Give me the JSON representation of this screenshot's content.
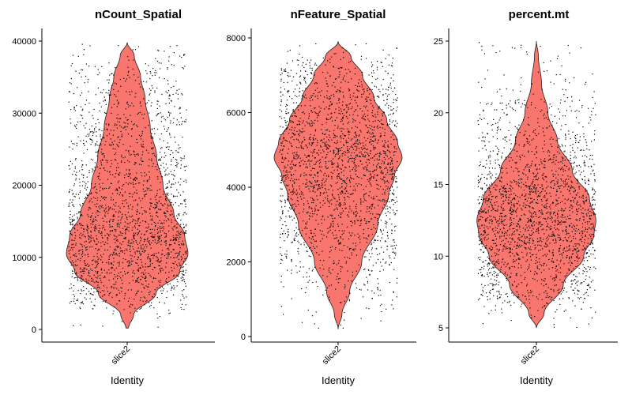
{
  "chart_data": [
    {
      "type": "violin",
      "title": "nCount_Spatial",
      "xlabel": "Identity",
      "ylabel": "",
      "categories": [
        "slice2"
      ],
      "ylim": [
        -1000,
        41000
      ],
      "yticks": [
        0,
        10000,
        20000,
        30000,
        40000
      ],
      "ytick_labels": [
        "0",
        "10000",
        "20000",
        "30000",
        "40000"
      ],
      "fill_color": "#F8766D",
      "data_range": [
        200,
        39800
      ],
      "density_profile": [
        [
          200,
          0.02
        ],
        [
          2000,
          0.1
        ],
        [
          5000,
          0.45
        ],
        [
          8000,
          0.82
        ],
        [
          10500,
          0.95
        ],
        [
          13000,
          0.9
        ],
        [
          16000,
          0.73
        ],
        [
          20000,
          0.56
        ],
        [
          24000,
          0.46
        ],
        [
          28000,
          0.36
        ],
        [
          32000,
          0.28
        ],
        [
          35000,
          0.21
        ],
        [
          38000,
          0.11
        ],
        [
          39800,
          0.0
        ]
      ],
      "point_count": 2200
    },
    {
      "type": "violin",
      "title": "nFeature_Spatial",
      "xlabel": "Identity",
      "ylabel": "",
      "categories": [
        "slice2"
      ],
      "ylim": [
        -200,
        8200
      ],
      "yticks": [
        0,
        2000,
        4000,
        6000,
        8000
      ],
      "ytick_labels": [
        "0",
        "2000",
        "4000",
        "6000",
        "8000"
      ],
      "fill_color": "#F8766D",
      "data_range": [
        200,
        7900
      ],
      "density_profile": [
        [
          200,
          0.0
        ],
        [
          600,
          0.06
        ],
        [
          1200,
          0.18
        ],
        [
          2000,
          0.37
        ],
        [
          3000,
          0.62
        ],
        [
          3800,
          0.79
        ],
        [
          4300,
          0.88
        ],
        [
          4800,
          1.0
        ],
        [
          5200,
          0.93
        ],
        [
          5800,
          0.76
        ],
        [
          6400,
          0.56
        ],
        [
          7000,
          0.38
        ],
        [
          7500,
          0.2
        ],
        [
          7900,
          0.0
        ]
      ],
      "point_count": 2200
    },
    {
      "type": "violin",
      "title": "percent.mt",
      "xlabel": "Identity",
      "ylabel": "",
      "categories": [
        "slice2"
      ],
      "ylim": [
        4.5,
        25.5
      ],
      "yticks": [
        5,
        10,
        15,
        20,
        25
      ],
      "ytick_labels": [
        "5",
        "10",
        "15",
        "20",
        "25"
      ],
      "fill_color": "#F8766D",
      "data_range": [
        5,
        25
      ],
      "density_profile": [
        [
          5,
          0.0
        ],
        [
          6,
          0.12
        ],
        [
          8,
          0.42
        ],
        [
          10,
          0.74
        ],
        [
          11.5,
          0.9
        ],
        [
          12.5,
          0.93
        ],
        [
          14,
          0.83
        ],
        [
          16,
          0.56
        ],
        [
          18,
          0.33
        ],
        [
          20,
          0.18
        ],
        [
          22,
          0.08
        ],
        [
          24,
          0.03
        ],
        [
          25,
          0.0
        ]
      ],
      "point_count": 2200
    }
  ]
}
